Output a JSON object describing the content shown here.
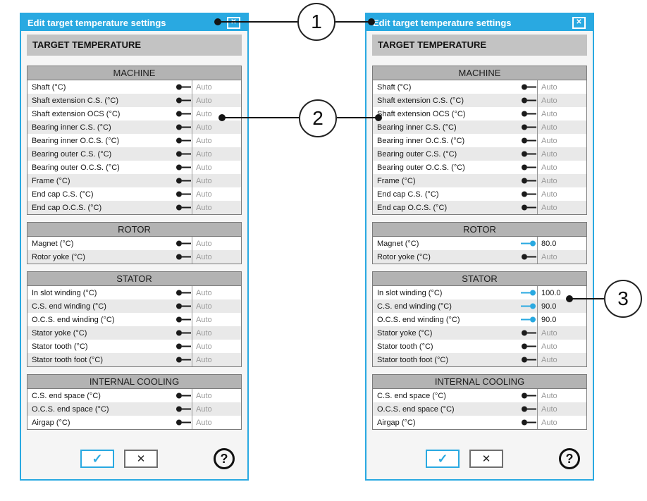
{
  "colors": {
    "accent": "#29a9e1",
    "banner_bg": "#c3c3c3",
    "section_header_bg": "#b3b3b3",
    "row_alt_bg": "#e9e9e9",
    "auto_text": "#9b9b9b",
    "table_border": "#7b7b7b"
  },
  "glyphs": {
    "close": "✕",
    "check": "✓",
    "cancel": "✕",
    "help": "?"
  },
  "callouts": [
    {
      "number": "1"
    },
    {
      "number": "2"
    },
    {
      "number": "3"
    }
  ],
  "dialogs": [
    {
      "title": "Edit target temperature settings",
      "banner": "TARGET TEMPERATURE",
      "sections": [
        {
          "header": "MACHINE",
          "rows": [
            {
              "label": "Shaft (°C)",
              "mode": "auto",
              "value": "Auto"
            },
            {
              "label": "Shaft extension C.S. (°C)",
              "mode": "auto",
              "value": "Auto"
            },
            {
              "label": "Shaft extension OCS (°C)",
              "mode": "auto",
              "value": "Auto"
            },
            {
              "label": "Bearing inner C.S. (°C)",
              "mode": "auto",
              "value": "Auto"
            },
            {
              "label": "Bearing inner O.C.S. (°C)",
              "mode": "auto",
              "value": "Auto"
            },
            {
              "label": "Bearing outer C.S. (°C)",
              "mode": "auto",
              "value": "Auto"
            },
            {
              "label": "Bearing outer O.C.S. (°C)",
              "mode": "auto",
              "value": "Auto"
            },
            {
              "label": "Frame (°C)",
              "mode": "auto",
              "value": "Auto"
            },
            {
              "label": "End cap C.S. (°C)",
              "mode": "auto",
              "value": "Auto"
            },
            {
              "label": "End cap O.C.S. (°C)",
              "mode": "auto",
              "value": "Auto"
            }
          ]
        },
        {
          "header": "ROTOR",
          "rows": [
            {
              "label": "Magnet (°C)",
              "mode": "auto",
              "value": "Auto"
            },
            {
              "label": "Rotor yoke (°C)",
              "mode": "auto",
              "value": "Auto"
            }
          ]
        },
        {
          "header": "STATOR",
          "rows": [
            {
              "label": "In slot winding (°C)",
              "mode": "auto",
              "value": "Auto"
            },
            {
              "label": "C.S. end winding (°C)",
              "mode": "auto",
              "value": "Auto"
            },
            {
              "label": "O.C.S. end winding (°C)",
              "mode": "auto",
              "value": "Auto"
            },
            {
              "label": "Stator yoke (°C)",
              "mode": "auto",
              "value": "Auto"
            },
            {
              "label": "Stator tooth (°C)",
              "mode": "auto",
              "value": "Auto"
            },
            {
              "label": "Stator tooth foot (°C)",
              "mode": "auto",
              "value": "Auto"
            }
          ]
        },
        {
          "header": "INTERNAL COOLING",
          "rows": [
            {
              "label": "C.S. end space (°C)",
              "mode": "auto",
              "value": "Auto"
            },
            {
              "label": "O.C.S. end space (°C)",
              "mode": "auto",
              "value": "Auto"
            },
            {
              "label": "Airgap (°C)",
              "mode": "auto",
              "value": "Auto"
            }
          ]
        }
      ]
    },
    {
      "title": "Edit target temperature settings",
      "banner": "TARGET TEMPERATURE",
      "sections": [
        {
          "header": "MACHINE",
          "rows": [
            {
              "label": "Shaft (°C)",
              "mode": "auto",
              "value": "Auto"
            },
            {
              "label": "Shaft extension C.S. (°C)",
              "mode": "auto",
              "value": "Auto"
            },
            {
              "label": "Shaft extension OCS (°C)",
              "mode": "auto",
              "value": "Auto"
            },
            {
              "label": "Bearing inner C.S. (°C)",
              "mode": "auto",
              "value": "Auto"
            },
            {
              "label": "Bearing inner O.C.S. (°C)",
              "mode": "auto",
              "value": "Auto"
            },
            {
              "label": "Bearing outer C.S. (°C)",
              "mode": "auto",
              "value": "Auto"
            },
            {
              "label": "Bearing outer O.C.S. (°C)",
              "mode": "auto",
              "value": "Auto"
            },
            {
              "label": "Frame (°C)",
              "mode": "auto",
              "value": "Auto"
            },
            {
              "label": "End cap C.S. (°C)",
              "mode": "auto",
              "value": "Auto"
            },
            {
              "label": "End cap O.C.S. (°C)",
              "mode": "auto",
              "value": "Auto"
            }
          ]
        },
        {
          "header": "ROTOR",
          "rows": [
            {
              "label": "Magnet (°C)",
              "mode": "manual",
              "value": "80.0"
            },
            {
              "label": "Rotor yoke (°C)",
              "mode": "auto",
              "value": "Auto"
            }
          ]
        },
        {
          "header": "STATOR",
          "rows": [
            {
              "label": "In slot winding (°C)",
              "mode": "manual",
              "value": "100.0"
            },
            {
              "label": "C.S. end winding (°C)",
              "mode": "manual",
              "value": "90.0"
            },
            {
              "label": "O.C.S. end winding (°C)",
              "mode": "manual",
              "value": "90.0"
            },
            {
              "label": "Stator yoke (°C)",
              "mode": "auto",
              "value": "Auto"
            },
            {
              "label": "Stator tooth (°C)",
              "mode": "auto",
              "value": "Auto"
            },
            {
              "label": "Stator tooth foot (°C)",
              "mode": "auto",
              "value": "Auto"
            }
          ]
        },
        {
          "header": "INTERNAL COOLING",
          "rows": [
            {
              "label": "C.S. end space (°C)",
              "mode": "auto",
              "value": "Auto"
            },
            {
              "label": "O.C.S. end space (°C)",
              "mode": "auto",
              "value": "Auto"
            },
            {
              "label": "Airgap (°C)",
              "mode": "auto",
              "value": "Auto"
            }
          ]
        }
      ]
    }
  ]
}
